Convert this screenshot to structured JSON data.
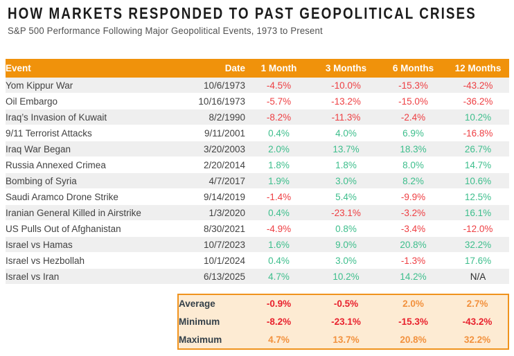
{
  "header": {
    "title": "HOW MARKETS RESPONDED TO PAST GEOPOLITICAL CRISES",
    "subtitle": "S&P 500 Performance Following Major Geopolitical Events, 1973 to Present"
  },
  "palette": {
    "header_orange": "#f0920b",
    "row_alt_gray": "#efefef",
    "positive_green": "#3dbe8c",
    "negative_red": "#ee3e42",
    "na_dark": "#2b2b2b",
    "summary_bg": "#fdebd3",
    "summary_border": "#f0931d",
    "summary_positive_orange": "#f2913d",
    "summary_negative_red": "#e8212d",
    "text_dark": "#414141",
    "summary_label_color": "#333f48",
    "title_color": "#1c1c1c",
    "subtitle_color": "#4f4f4f"
  },
  "chart_data": {
    "type": "table",
    "title": "HOW MARKETS RESPONDED TO PAST GEOPOLITICAL CRISES",
    "subtitle": "S&P 500 Performance Following Major Geopolitical Events, 1973 to Present",
    "columns": [
      "Event",
      "Date",
      "1 Month",
      "3 Months",
      "6 Months",
      "12 Months"
    ],
    "rows": [
      {
        "event": "Yom Kippur War",
        "date": "10/6/1973",
        "values": [
          "-4.5%",
          "-10.0%",
          "-15.3%",
          "-43.2%"
        ]
      },
      {
        "event": "Oil Embargo",
        "date": "10/16/1973",
        "values": [
          "-5.7%",
          "-13.2%",
          "-15.0%",
          "-36.2%"
        ]
      },
      {
        "event": "Iraq’s Invasion of Kuwait",
        "date": "8/2/1990",
        "values": [
          "-8.2%",
          "-11.3%",
          "-2.4%",
          "10.2%"
        ]
      },
      {
        "event": "9/11 Terrorist Attacks",
        "date": "9/11/2001",
        "values": [
          "0.4%",
          "4.0%",
          "6.9%",
          "-16.8%"
        ]
      },
      {
        "event": "Iraq War Began",
        "date": "3/20/2003",
        "values": [
          "2.0%",
          "13.7%",
          "18.3%",
          "26.7%"
        ]
      },
      {
        "event": "Russia Annexed Crimea",
        "date": "2/20/2014",
        "values": [
          "1.8%",
          "1.8%",
          "8.0%",
          "14.7%"
        ]
      },
      {
        "event": "Bombing of Syria",
        "date": "4/7/2017",
        "values": [
          "1.9%",
          "3.0%",
          "8.2%",
          "10.6%"
        ]
      },
      {
        "event": "Saudi Aramco Drone Strike",
        "date": "9/14/2019",
        "values": [
          "-1.4%",
          "5.4%",
          "-9.9%",
          "12.5%"
        ]
      },
      {
        "event": "Iranian General Killed in Airstrike",
        "date": "1/3/2020",
        "values": [
          "0.4%",
          "-23.1%",
          "-3.2%",
          "16.1%"
        ]
      },
      {
        "event": "US Pulls Out of Afghanistan",
        "date": "8/30/2021",
        "values": [
          "-4.9%",
          "0.8%",
          "-3.4%",
          "-12.0%"
        ]
      },
      {
        "event": "Israel vs Hamas",
        "date": "10/7/2023",
        "values": [
          "1.6%",
          "9.0%",
          "20.8%",
          "32.2%"
        ]
      },
      {
        "event": "Israel vs Hezbollah",
        "date": "10/1/2024",
        "values": [
          "0.4%",
          "3.0%",
          "-1.3%",
          "17.6%"
        ]
      },
      {
        "event": "Israel vs Iran",
        "date": "6/13/2025",
        "values": [
          "4.7%",
          "10.2%",
          "14.2%",
          "N/A"
        ]
      }
    ],
    "summary_rows": [
      {
        "label": "Average",
        "values": [
          "-0.9%",
          "-0.5%",
          "2.0%",
          "2.7%"
        ]
      },
      {
        "label": "Minimum",
        "values": [
          "-8.2%",
          "-23.1%",
          "-15.3%",
          "-43.2%"
        ]
      },
      {
        "label": "Maximum",
        "values": [
          "4.7%",
          "13.7%",
          "20.8%",
          "32.2%"
        ]
      }
    ],
    "na_label": "N/A",
    "value_color_rule": "table: negative=red, positive=green, N/A=dark; summary: negative=red, positive=orange"
  }
}
